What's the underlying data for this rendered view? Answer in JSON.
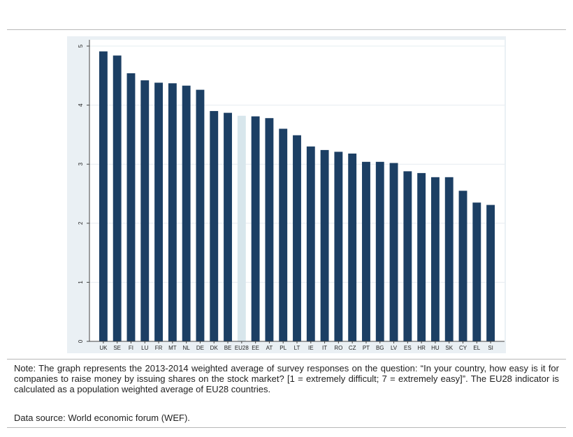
{
  "chart_data": {
    "type": "bar",
    "categories": [
      "UK",
      "SE",
      "FI",
      "LU",
      "FR",
      "MT",
      "NL",
      "DE",
      "DK",
      "BE",
      "EU28",
      "EE",
      "AT",
      "PL",
      "LT",
      "IE",
      "IT",
      "RO",
      "CZ",
      "PT",
      "BG",
      "LV",
      "ES",
      "HR",
      "HU",
      "SK",
      "CY",
      "EL",
      "SI"
    ],
    "values": [
      4.91,
      4.84,
      4.54,
      4.42,
      4.38,
      4.37,
      4.33,
      4.26,
      3.9,
      3.87,
      3.82,
      3.81,
      3.78,
      3.6,
      3.49,
      3.3,
      3.24,
      3.21,
      3.18,
      3.04,
      3.04,
      3.02,
      2.88,
      2.85,
      2.78,
      2.78,
      2.55,
      2.35,
      2.31
    ],
    "highlight_category": "EU28",
    "ylim": [
      0,
      5
    ],
    "yticks": [
      0,
      1,
      2,
      3,
      4,
      5
    ],
    "grid": true,
    "colors": {
      "bar": "#1c3f64",
      "highlight": "#d8e6ec",
      "plot_bg": "#ffffff",
      "frame_bg": "#eaf0f4",
      "grid": "#e6ecf0"
    }
  },
  "note": "Note: The graph represents the 2013-2014 weighted average of survey responses on the question: “In your country, how easy is it for companies to raise money by issuing shares on the stock market? [1 = extremely difficult; 7 = extremely easy]”. The EU28 indicator is calculated as a population weighted average of EU28 countries.",
  "source": "Data source: World economic forum (WEF)."
}
